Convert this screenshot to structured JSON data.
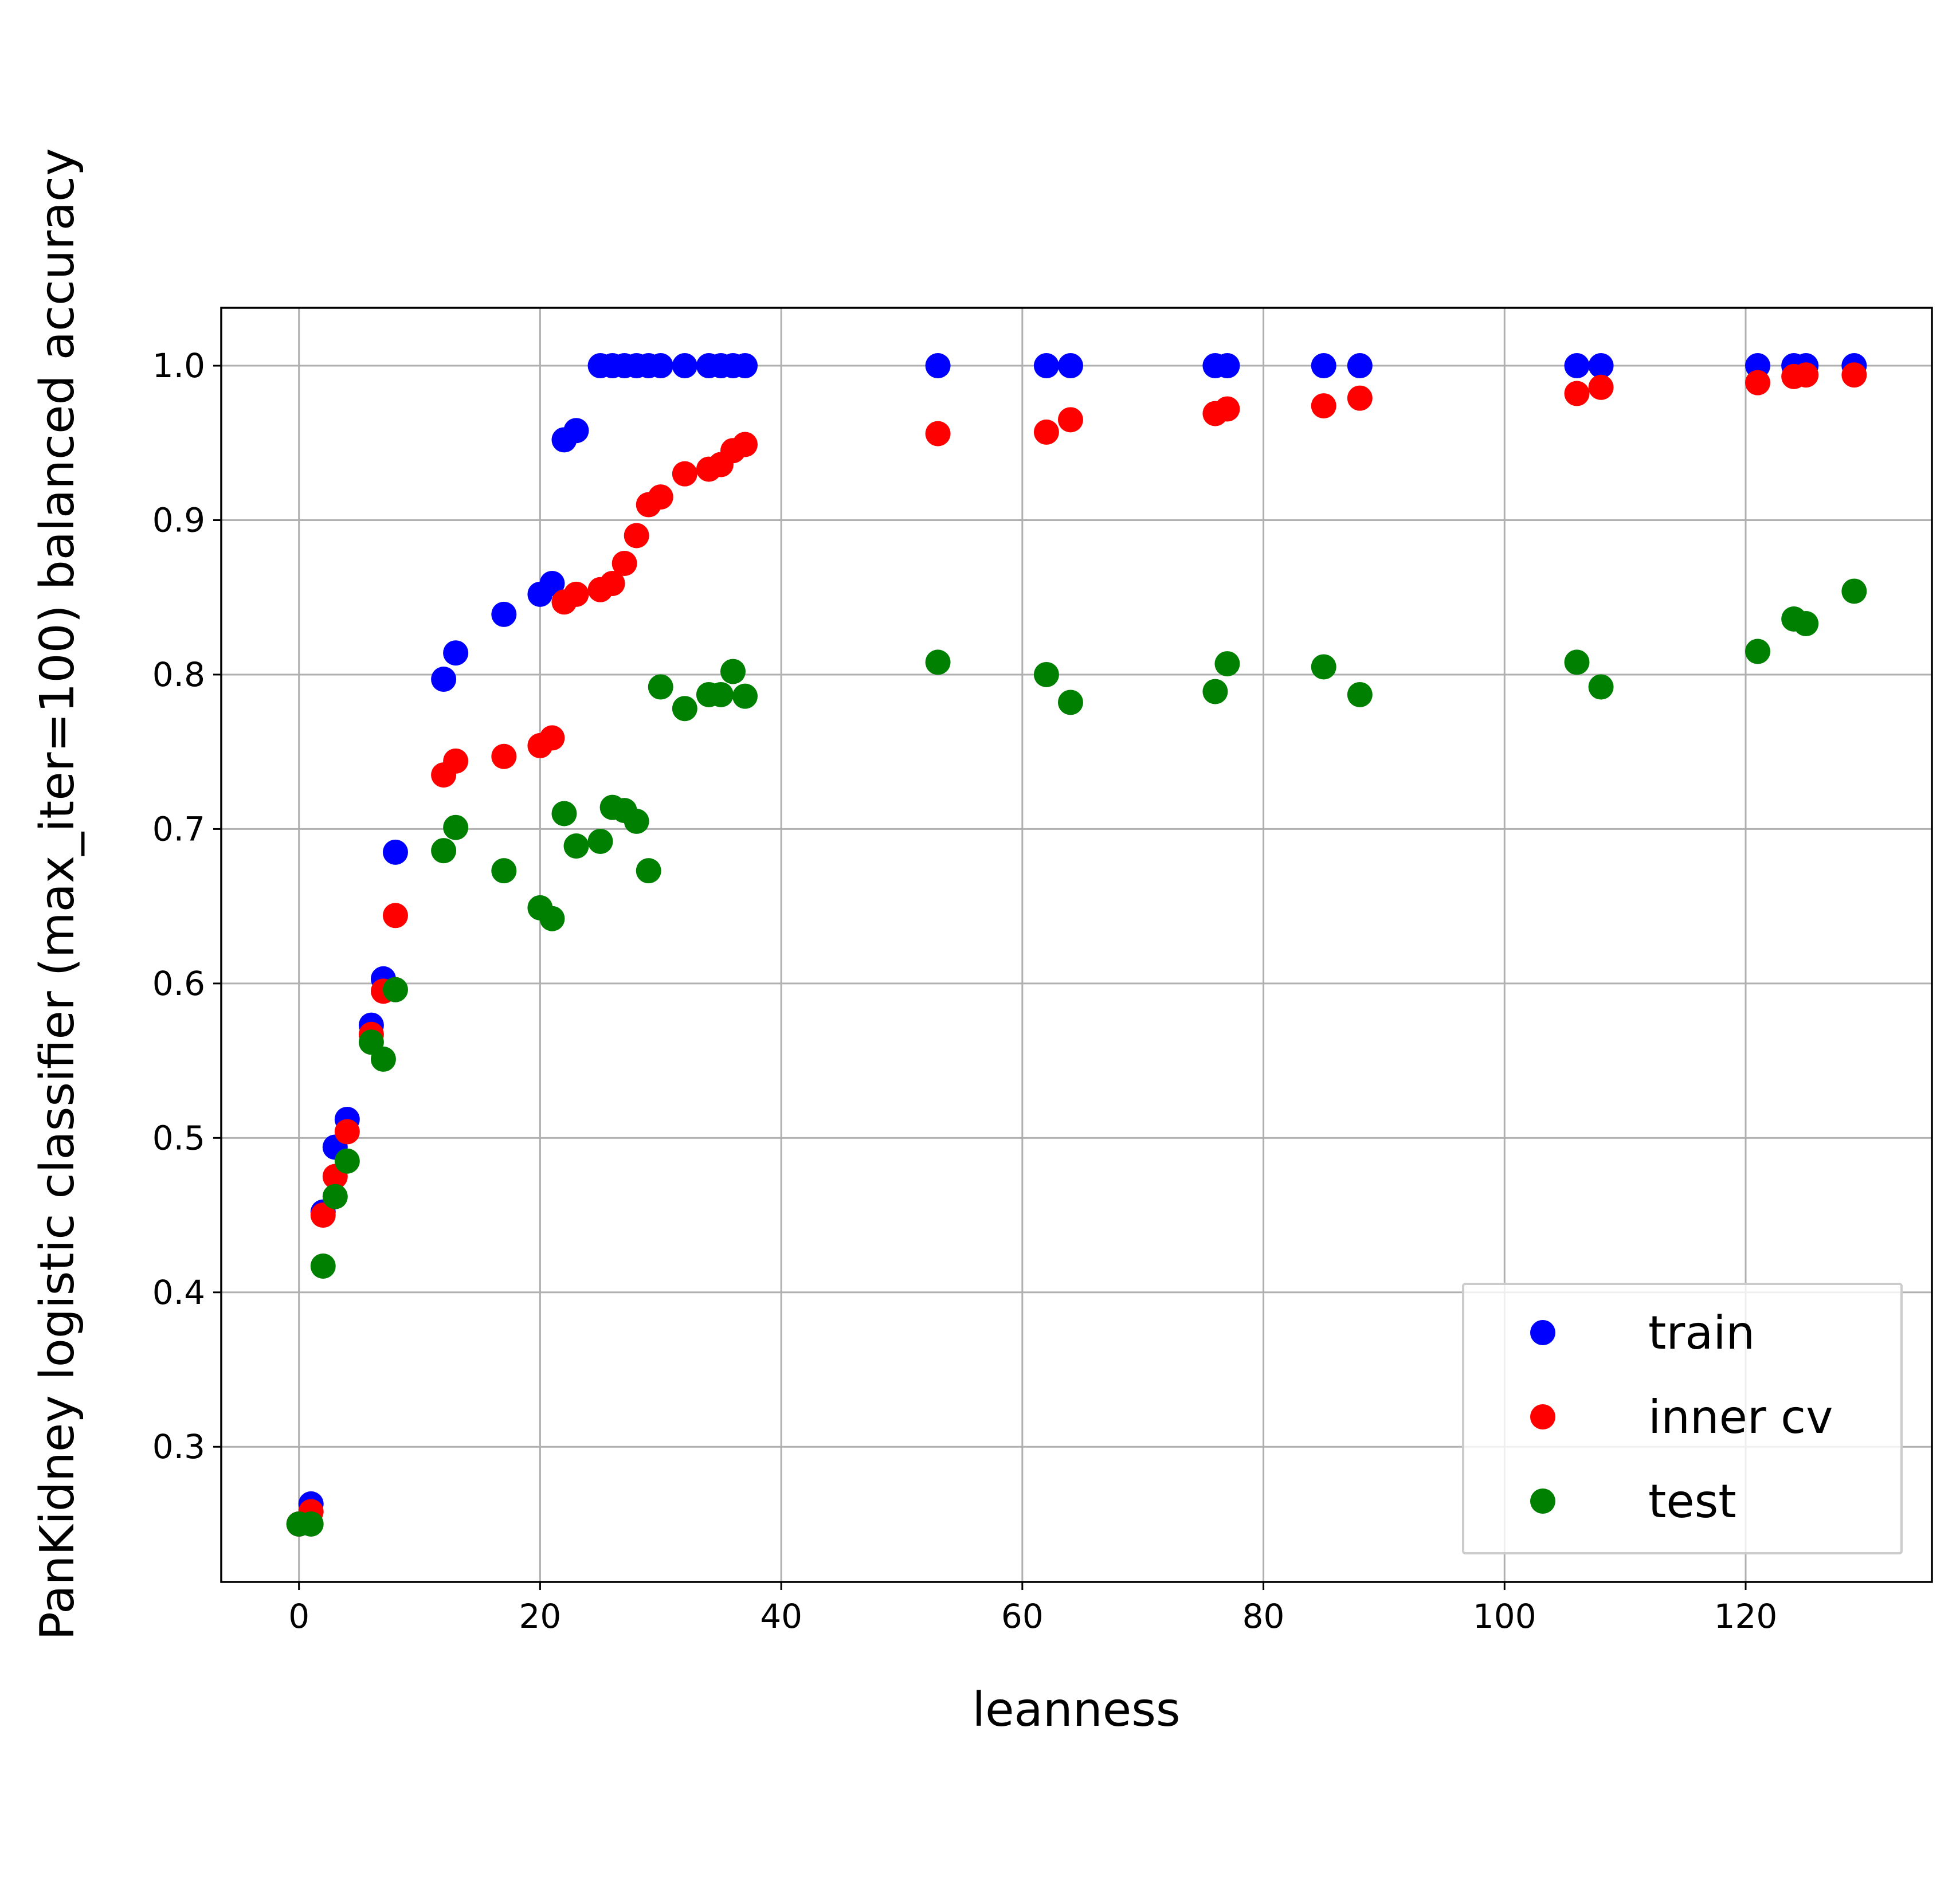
{
  "chart_data": {
    "type": "scatter",
    "title": "",
    "xlabel": "leanness",
    "ylabel": "PanKidney logistic classifier (max_iter=100) balanced accuracy",
    "xlim": [
      -6.45,
      135.45
    ],
    "ylim": [
      0.2125,
      1.0375
    ],
    "xticks": [
      0,
      20,
      40,
      60,
      80,
      100,
      120
    ],
    "yticks": [
      0.3,
      0.4,
      0.5,
      0.6,
      0.7,
      0.8,
      0.9,
      1.0
    ],
    "xtick_labels": [
      "0",
      "20",
      "40",
      "60",
      "80",
      "100",
      "120"
    ],
    "ytick_labels": [
      "0.3",
      "0.4",
      "0.5",
      "0.6",
      "0.7",
      "0.8",
      "0.9",
      "1.0"
    ],
    "grid": true,
    "legend_position": "bottom-right",
    "series": [
      {
        "name": "train",
        "color": "#0000ff",
        "points": [
          [
            0,
            0.25
          ],
          [
            1,
            0.263
          ],
          [
            2,
            0.452
          ],
          [
            3,
            0.494
          ],
          [
            4,
            0.512
          ],
          [
            6,
            0.573
          ],
          [
            7,
            0.603
          ],
          [
            8,
            0.685
          ],
          [
            12,
            0.797
          ],
          [
            13,
            0.814
          ],
          [
            17,
            0.839
          ],
          [
            20,
            0.852
          ],
          [
            21,
            0.859
          ],
          [
            22,
            0.952
          ],
          [
            23,
            0.958
          ],
          [
            25,
            1.0
          ],
          [
            26,
            1.0
          ],
          [
            27,
            1.0
          ],
          [
            28,
            1.0
          ],
          [
            29,
            1.0
          ],
          [
            30,
            1.0
          ],
          [
            32,
            1.0
          ],
          [
            34,
            1.0
          ],
          [
            35,
            1.0
          ],
          [
            36,
            1.0
          ],
          [
            37,
            1.0
          ],
          [
            53,
            1.0
          ],
          [
            62,
            1.0
          ],
          [
            64,
            1.0
          ],
          [
            76,
            1.0
          ],
          [
            77,
            1.0
          ],
          [
            85,
            1.0
          ],
          [
            88,
            1.0
          ],
          [
            106,
            1.0
          ],
          [
            108,
            1.0
          ],
          [
            121,
            1.0
          ],
          [
            124,
            1.0
          ],
          [
            125,
            1.0
          ],
          [
            129,
            1.0
          ]
        ]
      },
      {
        "name": "inner cv",
        "color": "#ff0000",
        "points": [
          [
            0,
            0.25
          ],
          [
            1,
            0.258
          ],
          [
            2,
            0.45
          ],
          [
            3,
            0.475
          ],
          [
            4,
            0.504
          ],
          [
            6,
            0.567
          ],
          [
            7,
            0.595
          ],
          [
            8,
            0.644
          ],
          [
            12,
            0.735
          ],
          [
            13,
            0.744
          ],
          [
            17,
            0.747
          ],
          [
            20,
            0.754
          ],
          [
            21,
            0.759
          ],
          [
            22,
            0.847
          ],
          [
            23,
            0.852
          ],
          [
            25,
            0.855
          ],
          [
            26,
            0.859
          ],
          [
            27,
            0.872
          ],
          [
            28,
            0.89
          ],
          [
            29,
            0.91
          ],
          [
            30,
            0.915
          ],
          [
            32,
            0.93
          ],
          [
            34,
            0.933
          ],
          [
            35,
            0.936
          ],
          [
            36,
            0.945
          ],
          [
            37,
            0.949
          ],
          [
            53,
            0.956
          ],
          [
            62,
            0.957
          ],
          [
            64,
            0.965
          ],
          [
            76,
            0.969
          ],
          [
            77,
            0.972
          ],
          [
            85,
            0.974
          ],
          [
            88,
            0.979
          ],
          [
            106,
            0.982
          ],
          [
            108,
            0.986
          ],
          [
            121,
            0.989
          ],
          [
            124,
            0.993
          ],
          [
            125,
            0.994
          ],
          [
            129,
            0.994
          ]
        ]
      },
      {
        "name": "test",
        "color": "#008000",
        "points": [
          [
            0,
            0.25
          ],
          [
            1,
            0.25
          ],
          [
            2,
            0.417
          ],
          [
            3,
            0.462
          ],
          [
            4,
            0.485
          ],
          [
            6,
            0.562
          ],
          [
            7,
            0.551
          ],
          [
            8,
            0.596
          ],
          [
            12,
            0.686
          ],
          [
            13,
            0.701
          ],
          [
            17,
            0.673
          ],
          [
            20,
            0.649
          ],
          [
            21,
            0.642
          ],
          [
            22,
            0.71
          ],
          [
            23,
            0.689
          ],
          [
            25,
            0.692
          ],
          [
            26,
            0.714
          ],
          [
            27,
            0.712
          ],
          [
            28,
            0.705
          ],
          [
            29,
            0.673
          ],
          [
            30,
            0.792
          ],
          [
            32,
            0.778
          ],
          [
            34,
            0.787
          ],
          [
            35,
            0.787
          ],
          [
            36,
            0.802
          ],
          [
            37,
            0.786
          ],
          [
            53,
            0.808
          ],
          [
            62,
            0.8
          ],
          [
            64,
            0.782
          ],
          [
            76,
            0.789
          ],
          [
            77,
            0.807
          ],
          [
            85,
            0.805
          ],
          [
            88,
            0.787
          ],
          [
            106,
            0.808
          ],
          [
            108,
            0.792
          ],
          [
            121,
            0.815
          ],
          [
            124,
            0.836
          ],
          [
            125,
            0.833
          ],
          [
            129,
            0.854
          ]
        ]
      }
    ]
  }
}
